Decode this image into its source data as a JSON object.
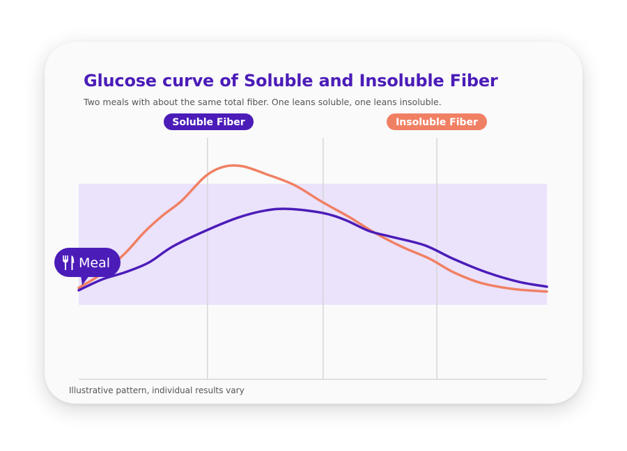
{
  "chart_data": {
    "type": "line",
    "title": "Glucose curve of Soluble and Insoluble Fiber",
    "subtitle": "Two meals with about the same total fiber. One leans soluble, one leans insoluble.",
    "xlabel": "",
    "ylabel": "",
    "footnote": "Illustrative pattern, individual results vary",
    "x_range": [
      0,
      100
    ],
    "y_range": [
      0,
      100
    ],
    "band": [
      31,
      81
    ],
    "grid_x": [
      27.5,
      52.2,
      76.5
    ],
    "grid": true,
    "axis_ticks": "none",
    "colors": {
      "soluble": "#4b1cb8",
      "insoluble": "#f08063",
      "band": "#ebe2fc",
      "grid": "#d6d6d6"
    },
    "series": [
      {
        "name": "Soluble Fiber",
        "color": "#4b1cb8",
        "x": [
          0,
          5,
          10,
          15,
          20,
          27,
          34,
          40,
          45,
          52,
          57,
          62,
          67,
          74,
          80,
          87,
          94,
          100
        ],
        "y": [
          37,
          41.5,
          44.5,
          48.5,
          55,
          61.5,
          67,
          70,
          70.6,
          69,
          66,
          61.5,
          59,
          55.5,
          50,
          44.5,
          40.5,
          38.5
        ]
      },
      {
        "name": "Insoluble Fiber",
        "color": "#f08063",
        "x": [
          0,
          5,
          10,
          14,
          18,
          22,
          27,
          31,
          35,
          40,
          46,
          52,
          58,
          63,
          69,
          75,
          80,
          86,
          93,
          100
        ],
        "y": [
          38,
          44,
          52.5,
          61,
          68,
          74,
          84,
          88,
          88.2,
          85,
          80.5,
          73.5,
          67,
          61,
          55,
          50,
          44.5,
          40,
          37.5,
          36.5
        ]
      }
    ],
    "labels": {
      "soluble": "Soluble Fiber",
      "insoluble": "Insoluble Fiber",
      "meal": "Meal"
    },
    "meal_icon": "fork-knife-icon"
  }
}
